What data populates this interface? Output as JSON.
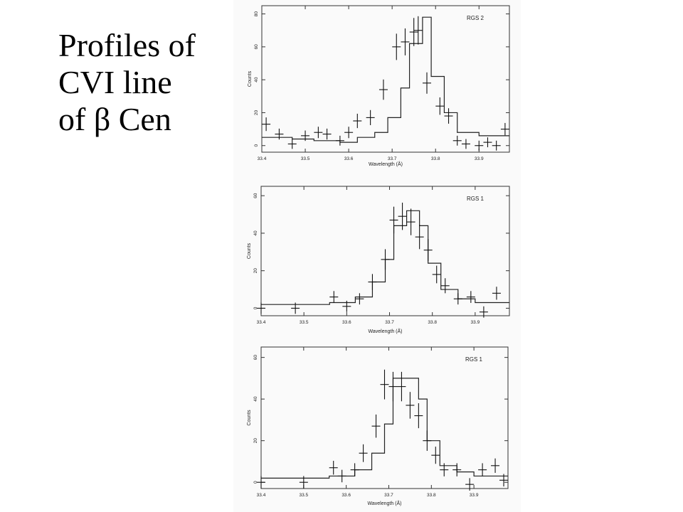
{
  "slide": {
    "title_lines": [
      "Profiles of",
      "CVI line",
      "of β Cen"
    ]
  },
  "chart_data": [
    {
      "type": "line",
      "title": "RGS 2",
      "xlabel": "Wavelength (Å)",
      "ylabel": "Counts",
      "xlim": [
        33.4,
        33.97
      ],
      "ylim": [
        -4,
        85
      ],
      "xticks": [
        33.4,
        33.5,
        33.6,
        33.7,
        33.8,
        33.9
      ],
      "yticks": [
        0,
        20,
        40,
        60,
        80
      ],
      "grid": false,
      "series": [
        {
          "role": "model",
          "x": [
            33.4,
            33.47,
            33.52,
            33.58,
            33.62,
            33.66,
            33.69,
            33.72,
            33.74,
            33.77,
            33.79,
            33.82,
            33.85,
            33.9,
            33.97
          ],
          "y": [
            5,
            4,
            3,
            2,
            5,
            8,
            17,
            35,
            62,
            78,
            42,
            20,
            8,
            6,
            6
          ]
        },
        {
          "role": "data",
          "x": [
            33.41,
            33.44,
            33.47,
            33.5,
            33.53,
            33.55,
            33.58,
            33.6,
            33.62,
            33.65,
            33.68,
            33.71,
            33.73,
            33.75,
            33.76,
            33.78,
            33.81,
            33.83,
            33.85,
            33.87,
            33.9,
            33.92,
            33.94,
            33.96
          ],
          "y": [
            13,
            7,
            1,
            6,
            8,
            7,
            3,
            8,
            15,
            17,
            34,
            60,
            63,
            69,
            70,
            38,
            24,
            18,
            3,
            1,
            0,
            2,
            0,
            10
          ]
        }
      ]
    },
    {
      "type": "line",
      "title": "RGS 1",
      "xlabel": "Wavelength (Å)",
      "ylabel": "Counts",
      "xlim": [
        33.4,
        33.98
      ],
      "ylim": [
        -4,
        65
      ],
      "xticks": [
        33.4,
        33.5,
        33.6,
        33.7,
        33.8,
        33.9
      ],
      "yticks": [
        0,
        20,
        40,
        60
      ],
      "grid": false,
      "series": [
        {
          "role": "model",
          "x": [
            33.4,
            33.48,
            33.56,
            33.62,
            33.66,
            33.69,
            33.71,
            33.74,
            33.77,
            33.79,
            33.82,
            33.86,
            33.9,
            33.98
          ],
          "y": [
            2,
            2,
            3,
            6,
            14,
            26,
            44,
            52,
            44,
            24,
            10,
            5,
            3,
            3
          ]
        },
        {
          "role": "data",
          "x": [
            33.4,
            33.48,
            33.57,
            33.6,
            33.63,
            33.66,
            33.69,
            33.71,
            33.73,
            33.75,
            33.77,
            33.79,
            33.81,
            33.83,
            33.86,
            33.89,
            33.92,
            33.95
          ],
          "y": [
            0,
            0,
            6,
            1,
            5,
            14,
            26,
            47,
            49,
            46,
            38,
            31,
            18,
            12,
            5,
            6,
            -2,
            8
          ]
        }
      ]
    },
    {
      "type": "line",
      "title": "RGS 1",
      "xlabel": "Wavelength (Å)",
      "ylabel": "Counts",
      "xlim": [
        33.4,
        33.98
      ],
      "ylim": [
        -3,
        65
      ],
      "xticks": [
        33.4,
        33.5,
        33.6,
        33.7,
        33.8,
        33.9
      ],
      "yticks": [
        0,
        20,
        40,
        60
      ],
      "grid": false,
      "series": [
        {
          "role": "model",
          "x": [
            33.4,
            33.48,
            33.56,
            33.62,
            33.66,
            33.69,
            33.71,
            33.74,
            33.77,
            33.79,
            33.82,
            33.86,
            33.9,
            33.98
          ],
          "y": [
            2,
            2,
            3,
            6,
            14,
            28,
            50,
            50,
            40,
            20,
            8,
            5,
            3,
            3
          ]
        },
        {
          "role": "data",
          "x": [
            33.4,
            33.5,
            33.57,
            33.59,
            33.62,
            33.64,
            33.67,
            33.69,
            33.71,
            33.73,
            33.75,
            33.77,
            33.79,
            33.81,
            33.83,
            33.86,
            33.89,
            33.92,
            33.95,
            33.97
          ],
          "y": [
            0,
            0,
            7,
            3,
            6,
            14,
            27,
            47,
            46,
            46,
            37,
            32,
            20,
            13,
            6,
            6,
            -1,
            6,
            8,
            1
          ]
        }
      ]
    }
  ]
}
